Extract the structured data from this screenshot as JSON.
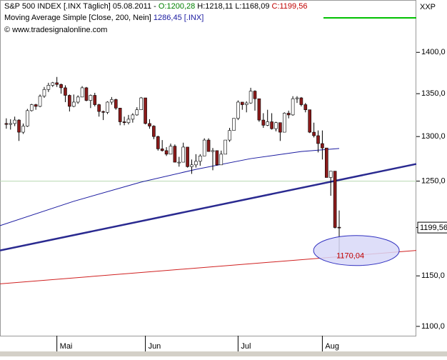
{
  "chart_data": {
    "type": "candlestick",
    "header": {
      "name": "S&P 500 INDEX [.INX  Täglich] 05.08.2011 -",
      "open_label": "O:1200,28",
      "high_label": "H:1218,11",
      "low_label": "L:1168,09",
      "close_label": "C:1199,56",
      "indicator": "Moving Average Simple [Close, 200, Nein]",
      "indicator_value": "1286,45 [.INX]",
      "copyright": "© www.tradesignalonline.com",
      "axis_title": "XXP"
    },
    "log_scale": true,
    "ylim": [
      1091,
      1466
    ],
    "xlim": [
      -1.5,
      97.3
    ],
    "yticks": [
      {
        "value": 1100,
        "label": "1100,0"
      },
      {
        "value": 1150,
        "label": "1150,0"
      },
      {
        "value": 1200,
        "label": "1200,0"
      },
      {
        "value": 1250,
        "label": "1250,0"
      },
      {
        "value": 1300,
        "label": "1300,0"
      },
      {
        "value": 1350,
        "label": "1350,0"
      },
      {
        "value": 1400,
        "label": "1400,0"
      }
    ],
    "xticks": [
      {
        "value": 12,
        "label": "Mai"
      },
      {
        "value": 33,
        "label": "Jun"
      },
      {
        "value": 55,
        "label": "Jul"
      },
      {
        "value": 75,
        "label": "Aug"
      }
    ],
    "up_color": "#ffffff",
    "down_color": "#8b1a1a",
    "open": [
      1315,
      1314,
      1315,
      1319,
      1305,
      1312,
      1330,
      1337,
      1335,
      1347,
      1355,
      1360,
      1363,
      1361,
      1357,
      1348,
      1335,
      1340,
      1346,
      1357,
      1342,
      1348,
      1337,
      1329,
      1328,
      1340,
      1343,
      1333,
      1317,
      1316,
      1320,
      1325,
      1331,
      1345,
      1315,
      1312,
      1300,
      1286,
      1284,
      1280,
      1289,
      1271,
      1271,
      1288,
      1266,
      1268,
      1272,
      1278,
      1296,
      1283,
      1284,
      1268,
      1280,
      1296,
      1307,
      1321,
      1340,
      1337,
      1339,
      1353,
      1344,
      1319,
      1313,
      1317,
      1309,
      1316,
      1305,
      1327,
      1325,
      1344,
      1345,
      1337,
      1331,
      1305,
      1301,
      1292,
      1287,
      1254,
      1261,
      1200.28
    ],
    "high": [
      1321,
      1320,
      1323,
      1320,
      1315,
      1332,
      1338,
      1338,
      1349,
      1358,
      1363,
      1364,
      1370,
      1362,
      1360,
      1349,
      1349,
      1348,
      1359,
      1358,
      1349,
      1351,
      1338,
      1330,
      1341,
      1346,
      1344,
      1333,
      1323,
      1325,
      1327,
      1334,
      1346,
      1345,
      1320,
      1313,
      1301,
      1296,
      1288,
      1292,
      1291,
      1277,
      1293,
      1288,
      1274,
      1280,
      1280,
      1298,
      1298,
      1287,
      1284,
      1284,
      1296,
      1310,
      1321,
      1342,
      1340,
      1341,
      1357,
      1354,
      1344,
      1327,
      1331,
      1327,
      1317,
      1316,
      1328,
      1330,
      1347,
      1347,
      1346,
      1339,
      1331,
      1316,
      1307,
      1307,
      1287,
      1261,
      1261,
      1218.11
    ],
    "low": [
      1309,
      1308,
      1312,
      1295,
      1303,
      1311,
      1329,
      1331,
      1334,
      1345,
      1352,
      1358,
      1358,
      1350,
      1340,
      1329,
      1334,
      1338,
      1346,
      1341,
      1333,
      1335,
      1323,
      1319,
      1326,
      1337,
      1331,
      1313,
      1313,
      1314,
      1316,
      1324,
      1331,
      1314,
      1309,
      1297,
      1284,
      1283,
      1278,
      1280,
      1271,
      1266,
      1271,
      1265,
      1258,
      1265,
      1267,
      1278,
      1283,
      1262,
      1267,
      1268,
      1280,
      1294,
      1307,
      1319,
      1331,
      1328,
      1338,
      1330,
      1317,
      1310,
      1312,
      1308,
      1306,
      1295,
      1305,
      1321,
      1324,
      1339,
      1335,
      1328,
      1304,
      1299,
      1282,
      1274,
      1254,
      1234,
      1199,
      1168.09
    ],
    "close": [
      1314,
      1315,
      1319,
      1305,
      1312,
      1330,
      1337,
      1335,
      1347,
      1355,
      1360,
      1363,
      1361,
      1357,
      1348,
      1335,
      1340,
      1346,
      1357,
      1342,
      1348,
      1337,
      1329,
      1328,
      1340,
      1343,
      1333,
      1317,
      1316,
      1320,
      1325,
      1331,
      1345,
      1315,
      1312,
      1300,
      1286,
      1284,
      1280,
      1289,
      1271,
      1271,
      1288,
      1266,
      1268,
      1272,
      1278,
      1296,
      1283,
      1284,
      1268,
      1280,
      1296,
      1307,
      1321,
      1340,
      1337,
      1339,
      1353,
      1344,
      1319,
      1313,
      1317,
      1309,
      1316,
      1305,
      1327,
      1325,
      1344,
      1345,
      1337,
      1331,
      1305,
      1301,
      1292,
      1287,
      1254,
      1261,
      1200,
      1199.56
    ],
    "moving_average": {
      "color": "#1a1aa0",
      "x": [
        -1.5,
        16,
        32,
        45,
        58,
        70,
        79
      ],
      "values": [
        1202,
        1228,
        1249,
        1263,
        1275,
        1283,
        1286.45
      ]
    },
    "trendlines": [
      {
        "color": "#2a2a90",
        "width": 2.5,
        "x": [
          -1.5,
          97.3
        ],
        "values": [
          1176,
          1269
        ]
      },
      {
        "color": "#d02020",
        "width": 1,
        "x": [
          -1.5,
          97.3
        ],
        "values": [
          1142,
          1176
        ]
      }
    ],
    "hline": {
      "value": 1250,
      "color": "#b8d8b0"
    },
    "last_price_label": "1199,56",
    "annotation": {
      "label": "1170,04",
      "value": 1170.04,
      "x": 78
    }
  }
}
